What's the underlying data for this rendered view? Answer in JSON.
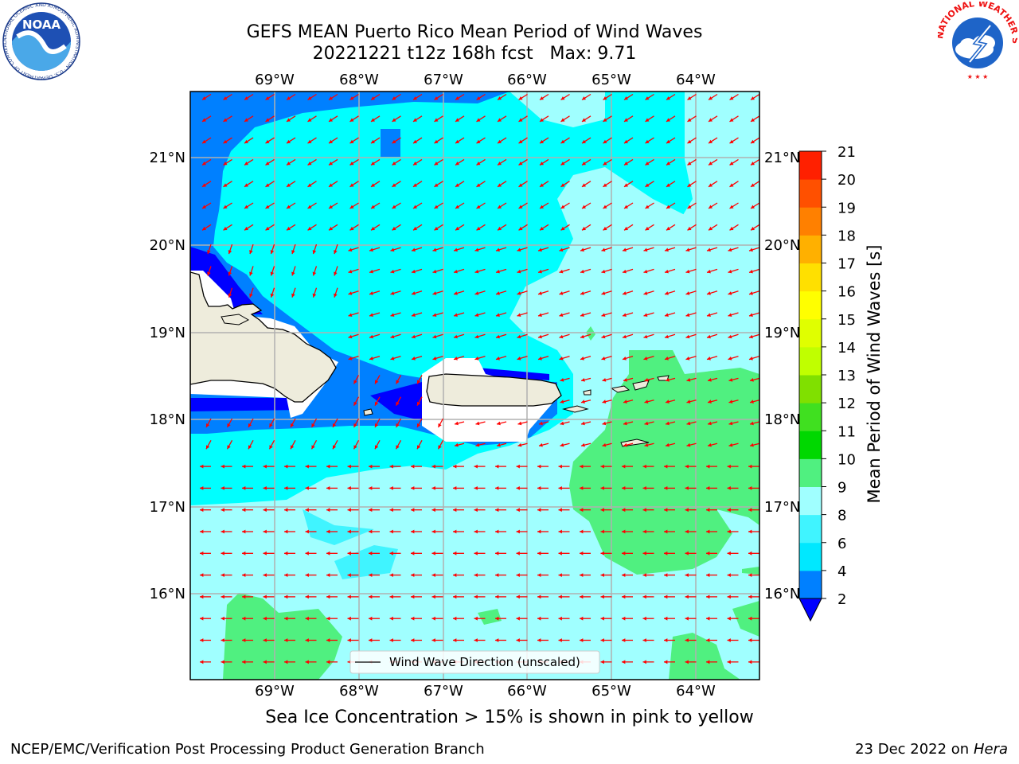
{
  "title": {
    "line1": "GEFS MEAN Puerto Rico Mean Period of Wind Waves",
    "line2": "20221221 t12z 168h fcst   Max: 9.71"
  },
  "subtitle": "Sea Ice Concentration > 15% is shown in pink to yellow",
  "footer": {
    "left": "NCEP/EMC/Verification Post Processing Product Generation Branch",
    "date": "23 Dec 2022 on",
    "machine": "Hera"
  },
  "map": {
    "lon_ticks": [
      "69°W",
      "68°W",
      "67°W",
      "66°W",
      "65°W",
      "64°W"
    ],
    "lat_ticks": [
      "21°N",
      "20°N",
      "19°N",
      "18°N",
      "17°N",
      "16°N"
    ],
    "legend_label": "Wind Wave Direction (unscaled)",
    "arrow_color": "#ff0000",
    "land_color": "#eeecdc"
  },
  "colorbar": {
    "label": "Mean Period of Wind Waves [s]",
    "ticks": [
      "2",
      "4",
      "6",
      "8",
      "9",
      "10",
      "11",
      "12",
      "13",
      "14",
      "15",
      "16",
      "17",
      "18",
      "19",
      "20",
      "21"
    ],
    "colors": [
      "#0080ff",
      "#00e8ff",
      "#40f4ff",
      "#a0ffff",
      "#50f080",
      "#00d800",
      "#40e020",
      "#80e000",
      "#c0ff00",
      "#e0ff00",
      "#ffff00",
      "#ffe000",
      "#ffb000",
      "#ff8000",
      "#ff5000",
      "#ff2000",
      "#ff0000"
    ],
    "under_color": "#0000ff"
  },
  "logos": {
    "noaa_text": "NOAA",
    "noaa_ring": "NATIONAL OCEANIC AND ATMOSPHERIC ADMINISTRATION · U.S. DEPARTMENT OF COMMERCE",
    "nws_ring": "NATIONAL WEATHER SERVICE"
  }
}
